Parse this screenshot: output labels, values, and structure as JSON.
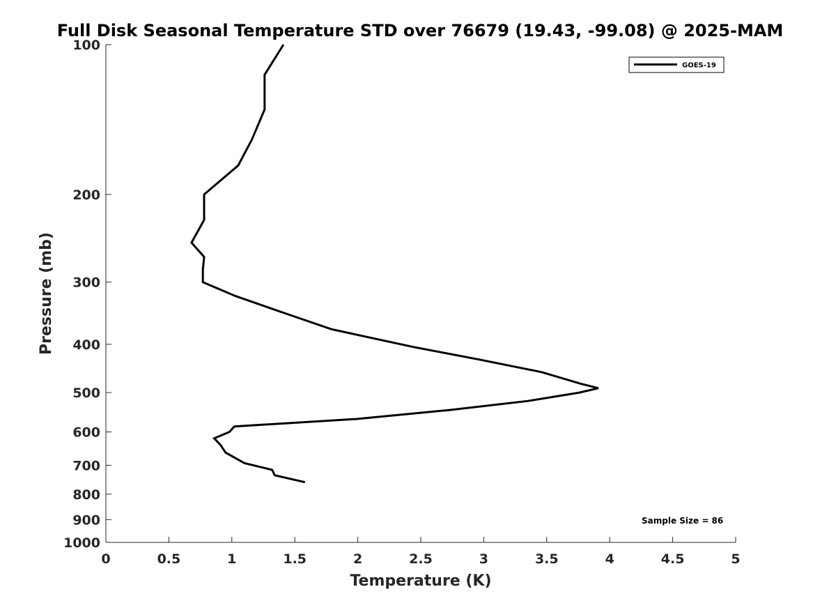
{
  "chart_data": {
    "type": "line",
    "title": "Full Disk Seasonal Temperature STD over 76679 (19.43, -99.08) @ 2025-MAM",
    "xlabel": "Temperature (K)",
    "ylabel": "Pressure (mb)",
    "xlim": [
      0,
      5
    ],
    "ylim": [
      100,
      1000
    ],
    "y_scale": "log",
    "y_direction": "reversed",
    "x_ticks": [
      0,
      0.5,
      1,
      1.5,
      2,
      2.5,
      3,
      3.5,
      4,
      4.5,
      5
    ],
    "x_tick_labels": [
      "0",
      "0.5",
      "1",
      "1.5",
      "2",
      "2.5",
      "3",
      "3.5",
      "4",
      "4.5",
      "5"
    ],
    "y_ticks": [
      100,
      200,
      300,
      400,
      500,
      600,
      700,
      800,
      900,
      1000
    ],
    "y_tick_labels": [
      "100",
      "200",
      "300",
      "400",
      "500",
      "600",
      "700",
      "800",
      "900",
      "1000"
    ],
    "grid": false,
    "legend_position": "top-right",
    "series": [
      {
        "name": "GOES-19",
        "color": "#000000",
        "x": [
          1.41,
          1.26,
          1.26,
          1.16,
          1.05,
          0.78,
          0.78,
          0.68,
          0.78,
          0.77,
          0.77,
          1.03,
          1.4,
          1.79,
          2.44,
          2.98,
          3.46,
          3.77,
          3.91,
          3.76,
          3.35,
          2.73,
          1.99,
          1.02,
          0.98,
          0.86,
          0.91,
          0.95,
          1.1,
          1.32,
          1.34,
          1.58
        ],
        "y": [
          100,
          115,
          135,
          155,
          175,
          200,
          225,
          250,
          267,
          283,
          300,
          320,
          345,
          373,
          405,
          430,
          455,
          480,
          490,
          500,
          520,
          542,
          565,
          585,
          600,
          618,
          637,
          660,
          693,
          715,
          733,
          757
        ]
      }
    ],
    "annotations": [
      "Sample Size = 86"
    ]
  }
}
